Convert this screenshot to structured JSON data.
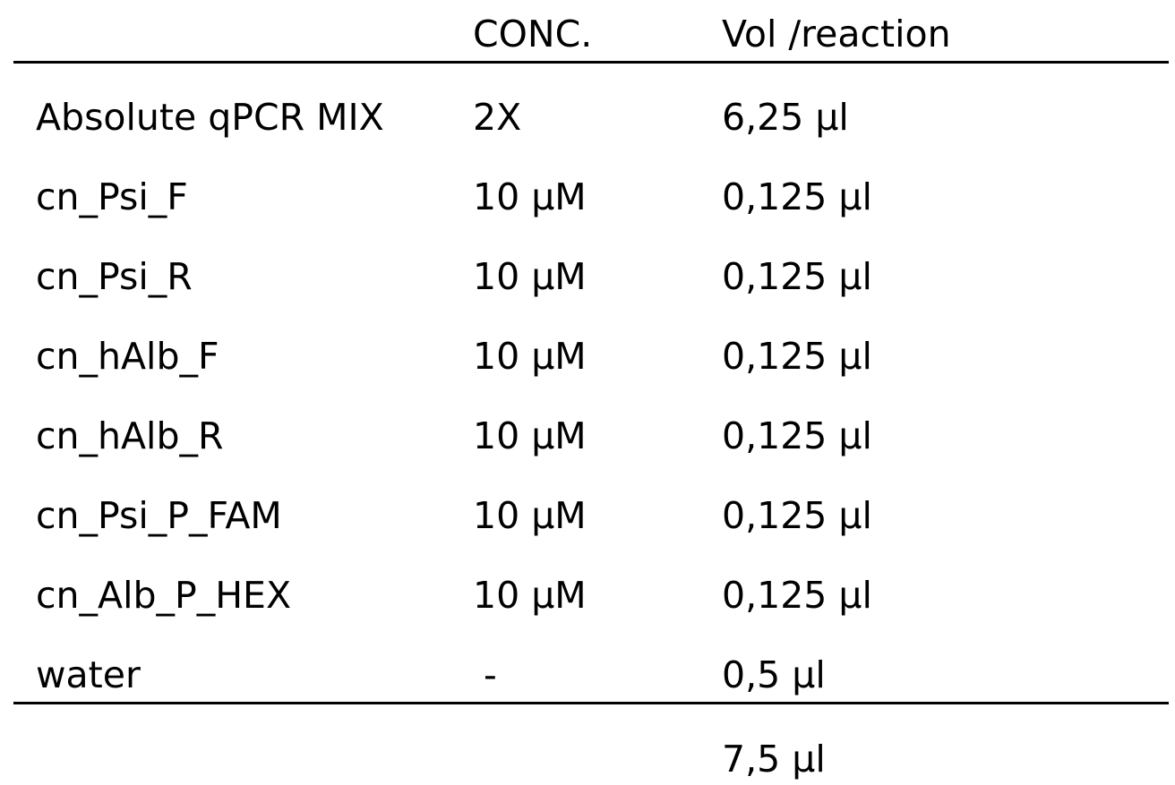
{
  "table": {
    "headers": [
      "",
      "CONC.",
      "Vol /reaction"
    ],
    "rows": [
      [
        "Absolute qPCR MIX",
        "2X",
        "6,25 µl"
      ],
      [
        "cn_Psi_F",
        "10 µM",
        "0,125 µl"
      ],
      [
        "cn_Psi_R",
        "10 µM",
        "0,125 µl"
      ],
      [
        "cn_hAlb_F",
        "10 µM",
        "0,125 µl"
      ],
      [
        "cn_hAlb_R",
        "10 µM",
        "0,125 µl"
      ],
      [
        "cn_Psi_P_FAM",
        "10 µM",
        "0,125 µl"
      ],
      [
        "cn_Alb_P_HEX",
        "10 µM",
        "0,125 µl"
      ],
      [
        "water",
        "-",
        "0,5 µl"
      ]
    ],
    "total": [
      "",
      "",
      "7,5 µl"
    ]
  }
}
